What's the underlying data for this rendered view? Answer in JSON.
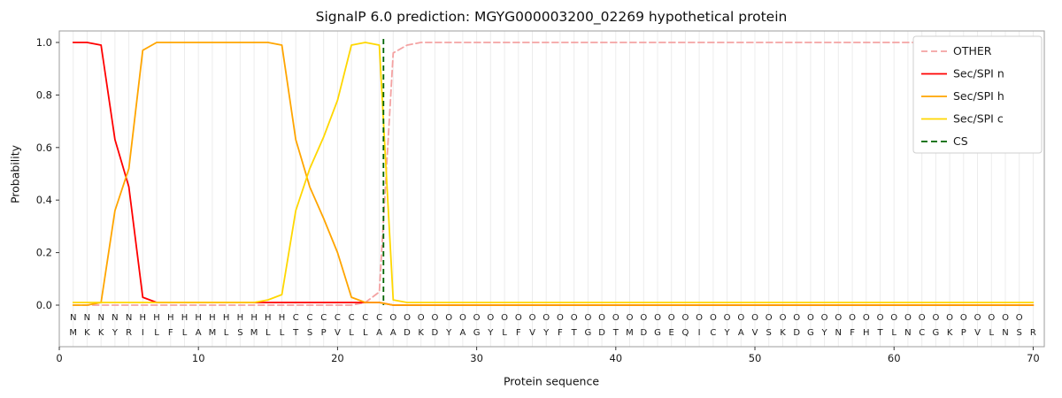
{
  "chart_data": {
    "type": "line",
    "title": "SignalP 6.0 prediction: MGYG000003200_02269 hypothetical protein",
    "xlabel": "Protein sequence",
    "ylabel": "Probability",
    "x_start": 1,
    "n_positions": 70,
    "xlim": [
      0,
      70.8
    ],
    "ylim": [
      0,
      1
    ],
    "x_ticks": [
      0,
      10,
      20,
      30,
      40,
      50,
      60,
      70
    ],
    "y_ticks": [
      "0.0",
      "0.2",
      "0.4",
      "0.6",
      "0.8",
      "1.0"
    ],
    "grid": "vertical-per-residue",
    "legend_position": "upper right",
    "sequence": "MKKYRILFLAMLSMLLTSPVLLAADKDYAGYLFVYFTGDTMDGEQICYAVSKDGYNFHTLNCGKPVLNSR",
    "region_labels": "NNNNNHHHHHHHHHHHCCCCCCCOOOOOOOOOOOOOOOOOOOOOOOOOOOOOOOOOOOOOOOOOOOOOO",
    "region_colors": {
      "N": "#ff0000",
      "H": "#ffa500",
      "C": "#ffd700",
      "O": "#8c8c8c"
    },
    "series": [
      {
        "name": "OTHER",
        "color": "#f4a2a2",
        "dashed": true,
        "values": [
          0,
          0,
          0,
          0,
          0,
          0,
          0,
          0,
          0,
          0,
          0,
          0,
          0,
          0,
          0,
          0,
          0,
          0,
          0,
          0,
          0,
          0.01,
          0.05,
          0.96,
          0.99,
          1,
          1,
          1,
          1,
          1,
          1,
          1,
          1,
          1,
          1,
          1,
          1,
          1,
          1,
          1,
          1,
          1,
          1,
          1,
          1,
          1,
          1,
          1,
          1,
          1,
          1,
          1,
          1,
          1,
          1,
          1,
          1,
          1,
          1,
          1,
          1,
          1,
          1,
          1,
          1,
          1,
          1,
          1,
          1,
          1
        ]
      },
      {
        "name": "Sec/SPI n",
        "color": "#ff0000",
        "dashed": false,
        "values": [
          1,
          1,
          0.99,
          0.63,
          0.45,
          0.03,
          0.01,
          0.01,
          0.01,
          0.01,
          0.01,
          0.01,
          0.01,
          0.01,
          0.01,
          0.01,
          0.01,
          0.01,
          0.01,
          0.01,
          0.01,
          0.01,
          0.01,
          0,
          0,
          0,
          0,
          0,
          0,
          0,
          0,
          0,
          0,
          0,
          0,
          0,
          0,
          0,
          0,
          0,
          0,
          0,
          0,
          0,
          0,
          0,
          0,
          0,
          0,
          0,
          0,
          0,
          0,
          0,
          0,
          0,
          0,
          0,
          0,
          0,
          0,
          0,
          0,
          0,
          0,
          0,
          0,
          0,
          0,
          0
        ]
      },
      {
        "name": "Sec/SPI h",
        "color": "#ffa500",
        "dashed": false,
        "values": [
          0,
          0,
          0.01,
          0.36,
          0.52,
          0.97,
          1,
          1,
          1,
          1,
          1,
          1,
          1,
          1,
          1,
          0.99,
          0.63,
          0.45,
          0.33,
          0.2,
          0.03,
          0.01,
          0.01,
          0,
          0,
          0,
          0,
          0,
          0,
          0,
          0,
          0,
          0,
          0,
          0,
          0,
          0,
          0,
          0,
          0,
          0,
          0,
          0,
          0,
          0,
          0,
          0,
          0,
          0,
          0,
          0,
          0,
          0,
          0,
          0,
          0,
          0,
          0,
          0,
          0,
          0,
          0,
          0,
          0,
          0,
          0,
          0,
          0,
          0,
          0
        ]
      },
      {
        "name": "Sec/SPI c",
        "color": "#ffd700",
        "dashed": false,
        "values": [
          0.01,
          0.01,
          0.01,
          0.01,
          0.01,
          0.01,
          0.01,
          0.01,
          0.01,
          0.01,
          0.01,
          0.01,
          0.01,
          0.01,
          0.02,
          0.04,
          0.36,
          0.52,
          0.64,
          0.78,
          0.99,
          1,
          0.99,
          0.02,
          0.01,
          0.01,
          0.01,
          0.01,
          0.01,
          0.01,
          0.01,
          0.01,
          0.01,
          0.01,
          0.01,
          0.01,
          0.01,
          0.01,
          0.01,
          0.01,
          0.01,
          0.01,
          0.01,
          0.01,
          0.01,
          0.01,
          0.01,
          0.01,
          0.01,
          0.01,
          0.01,
          0.01,
          0.01,
          0.01,
          0.01,
          0.01,
          0.01,
          0.01,
          0.01,
          0.01,
          0.01,
          0.01,
          0.01,
          0.01,
          0.01,
          0.01,
          0.01,
          0.01,
          0.01,
          0.01
        ]
      }
    ],
    "cs_line": {
      "name": "CS",
      "x": 23.3,
      "color": "#006400",
      "dashed": true
    },
    "legend_labels": [
      "OTHER",
      "Sec/SPI n",
      "Sec/SPI h",
      "Sec/SPI c",
      "CS"
    ]
  },
  "style_colors": {
    "gridline": "#ececec",
    "frame": "#9e9e9e",
    "tick": "#333333",
    "text": "#111111",
    "legend_border": "#cfcfcf",
    "legend_bg": "#ffffff",
    "sequence_text": "#1a1a1a"
  }
}
